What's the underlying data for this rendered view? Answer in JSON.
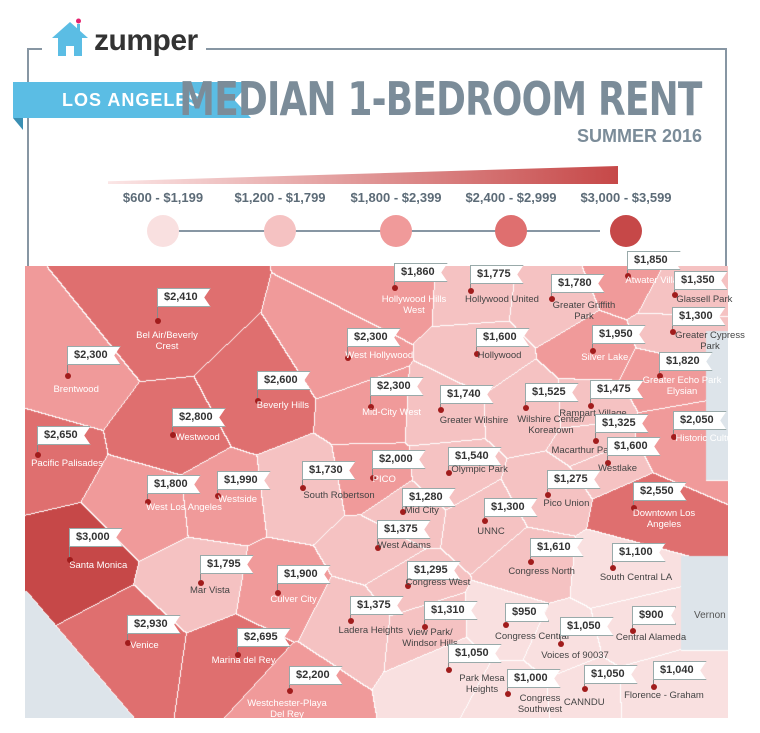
{
  "brand": {
    "name": "zumper",
    "icon": "house-icon",
    "colors": {
      "house": "#5bbde4",
      "heart": "#e4246f"
    }
  },
  "header": {
    "city": "LOS ANGELES",
    "title": "MEDIAN 1-BEDROOM RENT",
    "subtitle": "SUMMER 2016"
  },
  "legend": [
    {
      "label": "$600 - $1,199",
      "color": "#f9e0e0"
    },
    {
      "label": "$1,200 - $1,799",
      "color": "#f5c2c2"
    },
    {
      "label": "$1,800 - $2,399",
      "color": "#f09a9a"
    },
    {
      "label": "$2,400 - $2,999",
      "color": "#df6f6f"
    },
    {
      "label": "$3,000 - $3,599",
      "color": "#c64848"
    }
  ],
  "map": {
    "other_area": "Vernon",
    "colors": {
      "water": "#dde4ea",
      "border": "#ffffff"
    },
    "neighborhoods": [
      {
        "name": "Bel Air/Beverly Crest",
        "price": "$2,410",
        "tier": 4
      },
      {
        "name": "Brentwood",
        "price": "$2,300",
        "tier": 3
      },
      {
        "name": "Pacific Palisades",
        "price": "$2,650",
        "tier": 4
      },
      {
        "name": "Westwood",
        "price": "$2,800",
        "tier": 4
      },
      {
        "name": "Beverly Hills",
        "price": "$2,600",
        "tier": 4
      },
      {
        "name": "West Hollywood",
        "price": "$2,300",
        "tier": 3
      },
      {
        "name": "Mid-City West",
        "price": "$2,300",
        "tier": 3
      },
      {
        "name": "Hollywood Hills West",
        "price": "$1,860",
        "tier": 3
      },
      {
        "name": "Hollywood United",
        "price": "$1,775",
        "tier": 2
      },
      {
        "name": "Greater Griffith Park",
        "price": "$1,780",
        "tier": 2
      },
      {
        "name": "Atwater Village",
        "price": "$1,850",
        "tier": 3
      },
      {
        "name": "Glassell Park",
        "price": "$1,350",
        "tier": 2
      },
      {
        "name": "Greater Cypress Park",
        "price": "$1,300",
        "tier": 2
      },
      {
        "name": "Hollywood",
        "price": "$1,600",
        "tier": 2
      },
      {
        "name": "Silver Lake",
        "price": "$1,950",
        "tier": 3
      },
      {
        "name": "Greater Echo Park Elysian",
        "price": "$1,820",
        "tier": 3
      },
      {
        "name": "Greater Wilshire",
        "price": "$1,740",
        "tier": 2
      },
      {
        "name": "Wilshire Center/ Koreatown",
        "price": "$1,525",
        "tier": 2
      },
      {
        "name": "Rampart Village",
        "price": "$1,475",
        "tier": 2
      },
      {
        "name": "Macarthur Park",
        "price": "$1,325",
        "tier": 2
      },
      {
        "name": "Historic Cultural",
        "price": "$2,050",
        "tier": 3
      },
      {
        "name": "Westlake",
        "price": "$1,600",
        "tier": 2
      },
      {
        "name": "PICO",
        "price": "$2,000",
        "tier": 3
      },
      {
        "name": "Olympic Park",
        "price": "$1,540",
        "tier": 2
      },
      {
        "name": "South Robertson",
        "price": "$1,730",
        "tier": 2
      },
      {
        "name": "Westside",
        "price": "$1,990",
        "tier": 3
      },
      {
        "name": "West Los Angeles",
        "price": "$1,800",
        "tier": 3
      },
      {
        "name": "Mid City",
        "price": "$1,280",
        "tier": 2
      },
      {
        "name": "Pico Union",
        "price": "$1,275",
        "tier": 2
      },
      {
        "name": "Downtown Los Angeles",
        "price": "$2,550",
        "tier": 4
      },
      {
        "name": "UNNC",
        "price": "$1,300",
        "tier": 2
      },
      {
        "name": "Santa Monica",
        "price": "$3,000",
        "tier": 5
      },
      {
        "name": "West Adams",
        "price": "$1,375",
        "tier": 2
      },
      {
        "name": "Congress North",
        "price": "$1,610",
        "tier": 2
      },
      {
        "name": "South Central LA",
        "price": "$1,100",
        "tier": 1
      },
      {
        "name": "Mar Vista",
        "price": "$1,795",
        "tier": 2
      },
      {
        "name": "Culver City",
        "price": "$1,900",
        "tier": 3
      },
      {
        "name": "Congress West",
        "price": "$1,295",
        "tier": 2
      },
      {
        "name": "Ladera Heights",
        "price": "$1,375",
        "tier": 2
      },
      {
        "name": "View Park/ Windsor Hills",
        "price": "$1,310",
        "tier": 2
      },
      {
        "name": "Congress Central",
        "price": "$950",
        "tier": 1
      },
      {
        "name": "Voices of 90037",
        "price": "$1,050",
        "tier": 1
      },
      {
        "name": "Central Alameda",
        "price": "$900",
        "tier": 1
      },
      {
        "name": "Venice",
        "price": "$2,930",
        "tier": 4
      },
      {
        "name": "Marina del Rey",
        "price": "$2,695",
        "tier": 4
      },
      {
        "name": "Park Mesa Heights",
        "price": "$1,050",
        "tier": 1
      },
      {
        "name": "Congress Southwest",
        "price": "$1,000",
        "tier": 1
      },
      {
        "name": "CANNDU",
        "price": "$1,050",
        "tier": 1
      },
      {
        "name": "Florence - Graham",
        "price": "$1,040",
        "tier": 1
      },
      {
        "name": "Westchester-Playa Del Rey",
        "price": "$2,200",
        "tier": 3
      }
    ]
  }
}
